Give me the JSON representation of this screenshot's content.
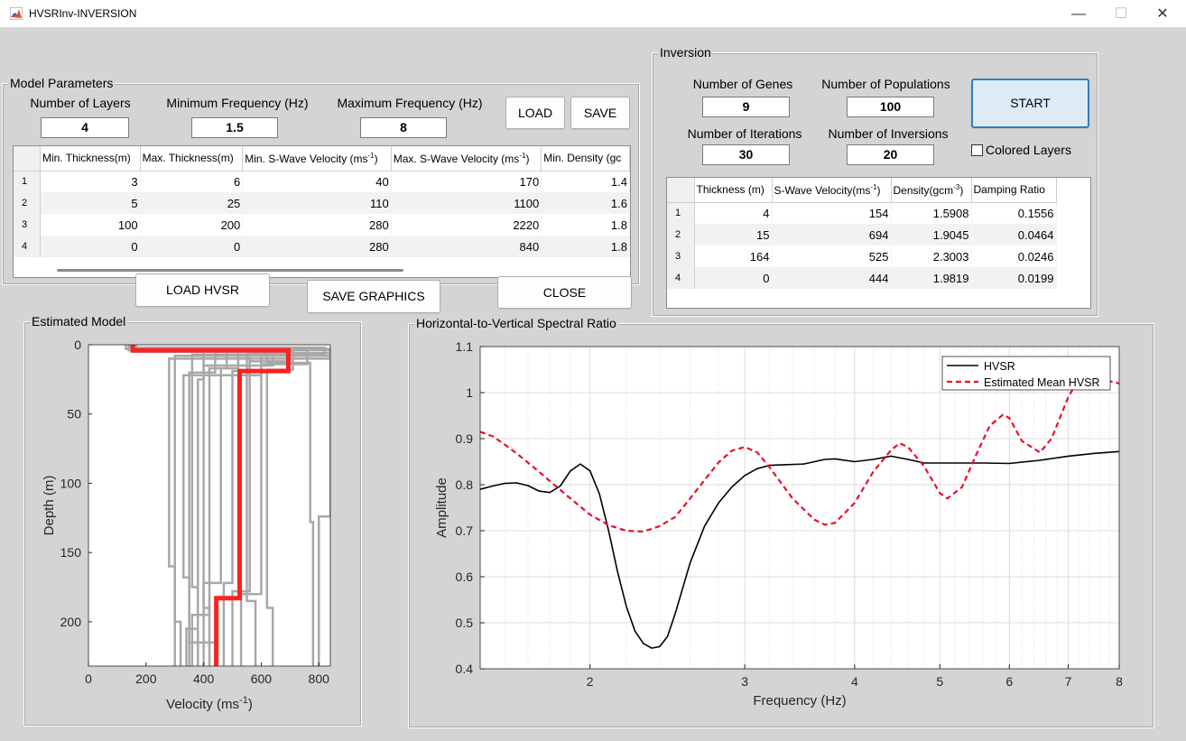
{
  "window": {
    "title": "HVSRInv-INVERSION",
    "minimize": "—",
    "maximize": "☐",
    "close": "✕"
  },
  "model_params": {
    "title": "Model Parameters",
    "layers_label": "Number of Layers",
    "layers_value": "4",
    "minf_label": "Minimum Frequency (Hz)",
    "minf_value": "1.5",
    "maxf_label": "Maximum Frequency (Hz)",
    "maxf_value": "8",
    "load_label": "LOAD",
    "save_label": "SAVE",
    "headers": [
      "Min. Thickness(m)",
      "Max. Thickness(m)",
      "Min. S-Wave Velocity (ms",
      "Max. S-Wave Velocity (ms",
      "Min. Density (gc"
    ],
    "sup": "-1",
    "rows": [
      [
        "1",
        "3",
        "6",
        "40",
        "170",
        "1.4"
      ],
      [
        "2",
        "5",
        "25",
        "110",
        "1100",
        "1.6"
      ],
      [
        "3",
        "100",
        "200",
        "280",
        "2220",
        "1.8"
      ],
      [
        "4",
        "0",
        "0",
        "280",
        "840",
        "1.8"
      ]
    ]
  },
  "buttons": {
    "load_hvsr": "LOAD HVSR",
    "save_graphics": "SAVE GRAPHICS",
    "close": "CLOSE"
  },
  "inversion": {
    "title": "Inversion",
    "genes_label": "Number of Genes",
    "genes_value": "9",
    "pop_label": "Number of Populations",
    "pop_value": "100",
    "iter_label": "Number of Iterations",
    "iter_value": "30",
    "inv_label": "Number of Inversions",
    "inv_value": "20",
    "start_label": "START",
    "colored_label": "Colored Layers",
    "headers": [
      "Thickness (m)",
      "S-Wave Velocity(ms",
      "Density(gcm",
      "Damping Ratio"
    ],
    "sup1": "-1",
    "sup2": "-3",
    "rows": [
      [
        "1",
        "4",
        "154",
        "1.5908",
        "0.1556"
      ],
      [
        "2",
        "15",
        "694",
        "1.9045",
        "0.0464"
      ],
      [
        "3",
        "164",
        "525",
        "2.3003",
        "0.0246"
      ],
      [
        "4",
        "0",
        "444",
        "1.9819",
        "0.0199"
      ]
    ]
  },
  "chart_data": [
    {
      "type": "line",
      "panel_title": "Estimated Model",
      "xlabel": "Velocity (ms",
      "xlabel_sup": "-1",
      "ylabel": "Depth (m)",
      "xlim": [
        0,
        840
      ],
      "ylim": [
        0,
        232
      ],
      "y_reversed": true,
      "xticks": [
        0,
        200,
        400,
        600,
        800
      ],
      "yticks": [
        0,
        50,
        100,
        150,
        200
      ],
      "colors": {
        "best": "#ff2020",
        "other": "#a8a8a8"
      },
      "best_model": {
        "velocity": [
          154,
          154,
          694,
          694,
          525,
          525,
          444,
          444
        ],
        "depth": [
          0,
          4,
          4,
          19,
          19,
          183,
          183,
          232
        ]
      },
      "other_models": [
        {
          "velocity": [
            130,
            130,
            840,
            840,
            280,
            280,
            300,
            300
          ],
          "depth": [
            0,
            3,
            3,
            10,
            10,
            160,
            160,
            232
          ]
        },
        {
          "velocity": [
            150,
            150,
            820,
            820,
            360,
            360,
            380,
            380
          ],
          "depth": [
            0,
            2,
            2,
            7,
            7,
            175,
            175,
            232
          ]
        },
        {
          "velocity": [
            160,
            160,
            520,
            520,
            460,
            460,
            400,
            400
          ],
          "depth": [
            0,
            5,
            5,
            17,
            17,
            172,
            172,
            232
          ]
        },
        {
          "velocity": [
            140,
            140,
            640,
            640,
            400,
            400,
            420,
            420
          ],
          "depth": [
            0,
            4,
            4,
            15,
            15,
            190,
            190,
            232
          ]
        },
        {
          "velocity": [
            165,
            165,
            700,
            700,
            560,
            560,
            500,
            500
          ],
          "depth": [
            0,
            4,
            4,
            12,
            12,
            178,
            178,
            232
          ]
        },
        {
          "velocity": [
            150,
            150,
            600,
            600,
            330,
            330,
            350,
            350
          ],
          "depth": [
            0,
            5,
            5,
            22,
            22,
            168,
            168,
            232
          ]
        },
        {
          "velocity": [
            155,
            155,
            840,
            840,
            300,
            300,
            320,
            320
          ],
          "depth": [
            0,
            3,
            3,
            8,
            8,
            200,
            200,
            232
          ]
        },
        {
          "velocity": [
            158,
            158,
            760,
            760,
            600,
            600,
            530,
            530
          ],
          "depth": [
            0,
            4,
            4,
            14,
            14,
            180,
            180,
            232
          ]
        },
        {
          "velocity": [
            145,
            145,
            400,
            400,
            380,
            380,
            340,
            340
          ],
          "depth": [
            0,
            3,
            3,
            25,
            25,
            205,
            205,
            232
          ]
        },
        {
          "velocity": [
            152,
            152,
            560,
            560,
            500,
            500,
            470,
            470
          ],
          "depth": [
            0,
            4,
            4,
            19,
            19,
            172,
            172,
            232
          ]
        },
        {
          "velocity": [
            148,
            148,
            840,
            840,
            550,
            550,
            580,
            580
          ],
          "depth": [
            0,
            3,
            3,
            6,
            6,
            185,
            185,
            232
          ]
        },
        {
          "velocity": [
            162,
            162,
            480,
            480,
            420,
            420,
            360,
            360
          ],
          "depth": [
            0,
            4,
            4,
            17,
            17,
            195,
            195,
            232
          ]
        },
        {
          "velocity": [
            156,
            156,
            620,
            620,
            770,
            770,
            780,
            780
          ],
          "depth": [
            0,
            3,
            3,
            13,
            13,
            128,
            128,
            232
          ]
        },
        {
          "velocity": [
            150,
            150,
            840,
            840,
            840,
            840,
            800,
            800
          ],
          "depth": [
            0,
            4,
            4,
            11,
            11,
            124,
            124,
            232
          ]
        },
        {
          "velocity": [
            160,
            160,
            710,
            710,
            620,
            620,
            640,
            640
          ],
          "depth": [
            0,
            5,
            5,
            18,
            18,
            190,
            190,
            232
          ]
        },
        {
          "velocity": [
            155,
            155,
            440,
            440,
            350,
            350,
            440,
            440
          ],
          "depth": [
            0,
            4,
            4,
            20,
            20,
            215,
            215,
            232
          ]
        }
      ]
    },
    {
      "type": "line",
      "panel_title": "Horizontal-to-Vertical Spectral Ratio",
      "xlabel": "Frequency (Hz)",
      "ylabel": "Amplitude",
      "x_scale": "log",
      "xlim": [
        1.5,
        8
      ],
      "ylim": [
        0.4,
        1.1
      ],
      "xticks": [
        2,
        3,
        4,
        5,
        6,
        7,
        8
      ],
      "yticks": [
        0.4,
        0.5,
        0.6,
        0.7,
        0.8,
        0.9,
        1,
        1.1
      ],
      "grid": true,
      "legend_placement": "top-right",
      "series": [
        {
          "name": "HVSR",
          "color": "#000000",
          "style": "solid",
          "x": [
            1.5,
            1.55,
            1.6,
            1.65,
            1.7,
            1.75,
            1.8,
            1.85,
            1.9,
            1.95,
            2.0,
            2.05,
            2.1,
            2.15,
            2.2,
            2.25,
            2.3,
            2.35,
            2.4,
            2.45,
            2.5,
            2.6,
            2.7,
            2.8,
            2.9,
            3.0,
            3.1,
            3.2,
            3.3,
            3.5,
            3.7,
            3.8,
            4.0,
            4.2,
            4.4,
            4.6,
            4.8,
            5.0,
            5.3,
            5.6,
            6.0,
            6.5,
            7.0,
            7.5,
            8.0
          ],
          "y": [
            0.79,
            0.797,
            0.803,
            0.804,
            0.798,
            0.786,
            0.783,
            0.797,
            0.83,
            0.845,
            0.83,
            0.78,
            0.7,
            0.61,
            0.535,
            0.482,
            0.455,
            0.445,
            0.448,
            0.47,
            0.52,
            0.63,
            0.71,
            0.76,
            0.795,
            0.82,
            0.835,
            0.842,
            0.843,
            0.845,
            0.855,
            0.856,
            0.85,
            0.855,
            0.862,
            0.855,
            0.847,
            0.847,
            0.847,
            0.847,
            0.846,
            0.853,
            0.862,
            0.868,
            0.872
          ]
        },
        {
          "name": "Estimated Mean HVSR",
          "color": "#e8102a",
          "style": "dashed",
          "x": [
            1.5,
            1.55,
            1.6,
            1.65,
            1.7,
            1.75,
            1.8,
            1.9,
            2.0,
            2.1,
            2.2,
            2.3,
            2.4,
            2.5,
            2.6,
            2.7,
            2.8,
            2.9,
            3.0,
            3.1,
            3.2,
            3.4,
            3.6,
            3.7,
            3.8,
            4.0,
            4.2,
            4.4,
            4.5,
            4.6,
            4.8,
            5.0,
            5.1,
            5.3,
            5.5,
            5.7,
            5.9,
            6.0,
            6.2,
            6.5,
            6.7,
            7.0,
            7.3,
            7.6,
            8.0
          ],
          "y": [
            0.915,
            0.905,
            0.887,
            0.868,
            0.848,
            0.828,
            0.808,
            0.77,
            0.735,
            0.712,
            0.7,
            0.698,
            0.71,
            0.73,
            0.77,
            0.81,
            0.848,
            0.874,
            0.882,
            0.87,
            0.838,
            0.77,
            0.724,
            0.713,
            0.717,
            0.76,
            0.828,
            0.875,
            0.89,
            0.882,
            0.84,
            0.782,
            0.77,
            0.795,
            0.865,
            0.928,
            0.952,
            0.945,
            0.895,
            0.87,
            0.9,
            0.99,
            1.05,
            1.03,
            1.02
          ]
        }
      ]
    }
  ]
}
